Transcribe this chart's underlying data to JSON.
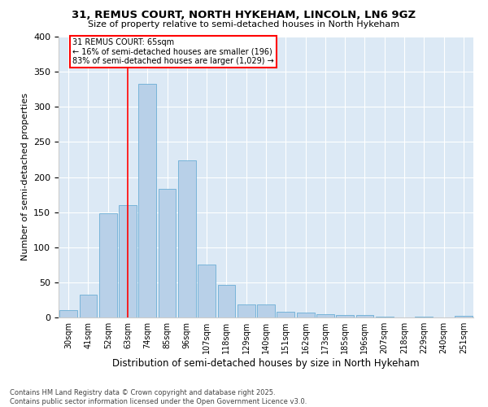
{
  "title": "31, REMUS COURT, NORTH HYKEHAM, LINCOLN, LN6 9GZ",
  "subtitle": "Size of property relative to semi-detached houses in North Hykeham",
  "xlabel": "Distribution of semi-detached houses by size in North Hykeham",
  "ylabel": "Number of semi-detached properties",
  "categories": [
    "30sqm",
    "41sqm",
    "52sqm",
    "63sqm",
    "74sqm",
    "85sqm",
    "96sqm",
    "107sqm",
    "118sqm",
    "129sqm",
    "140sqm",
    "151sqm",
    "162sqm",
    "173sqm",
    "185sqm",
    "196sqm",
    "207sqm",
    "218sqm",
    "229sqm",
    "240sqm",
    "251sqm"
  ],
  "values": [
    10,
    32,
    148,
    160,
    333,
    183,
    224,
    75,
    46,
    18,
    18,
    8,
    7,
    5,
    3,
    4,
    1,
    0,
    1,
    0,
    2
  ],
  "bar_color": "#b8d0e8",
  "bar_edge_color": "#6baed6",
  "vline_x": 3.0,
  "vline_color": "red",
  "annotation_title": "31 REMUS COURT: 65sqm",
  "annotation_line1": "← 16% of semi-detached houses are smaller (196)",
  "annotation_line2": "83% of semi-detached houses are larger (1,029) →",
  "annotation_box_color": "red",
  "ylim": [
    0,
    400
  ],
  "yticks": [
    0,
    50,
    100,
    150,
    200,
    250,
    300,
    350,
    400
  ],
  "bg_color": "#dce9f5",
  "footer": "Contains HM Land Registry data © Crown copyright and database right 2025.\nContains public sector information licensed under the Open Government Licence v3.0."
}
